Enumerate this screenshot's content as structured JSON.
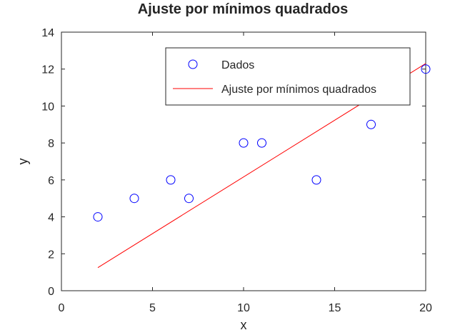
{
  "chart_data": {
    "type": "scatter",
    "title": "Ajuste por mínimos quadrados",
    "xlabel": "x",
    "ylabel": "y",
    "xlim": [
      0,
      20
    ],
    "ylim": [
      0,
      14
    ],
    "xticks": [
      0,
      5,
      10,
      15,
      20
    ],
    "yticks": [
      0,
      2,
      4,
      6,
      8,
      10,
      12,
      14
    ],
    "grid": false,
    "legend_position": "top-right",
    "series": [
      {
        "name": "Dados",
        "kind": "markers",
        "marker": "circle",
        "color": "#0000ff",
        "x": [
          2,
          4,
          6,
          7,
          10,
          11,
          14,
          17,
          20
        ],
        "y": [
          4,
          5,
          6,
          5,
          8,
          8,
          6,
          9,
          12
        ]
      },
      {
        "name": "Ajuste por mínimos quadrados",
        "kind": "line",
        "color": "#ff0000",
        "x": [
          2,
          20
        ],
        "y": [
          1.25,
          12.3
        ]
      }
    ]
  }
}
